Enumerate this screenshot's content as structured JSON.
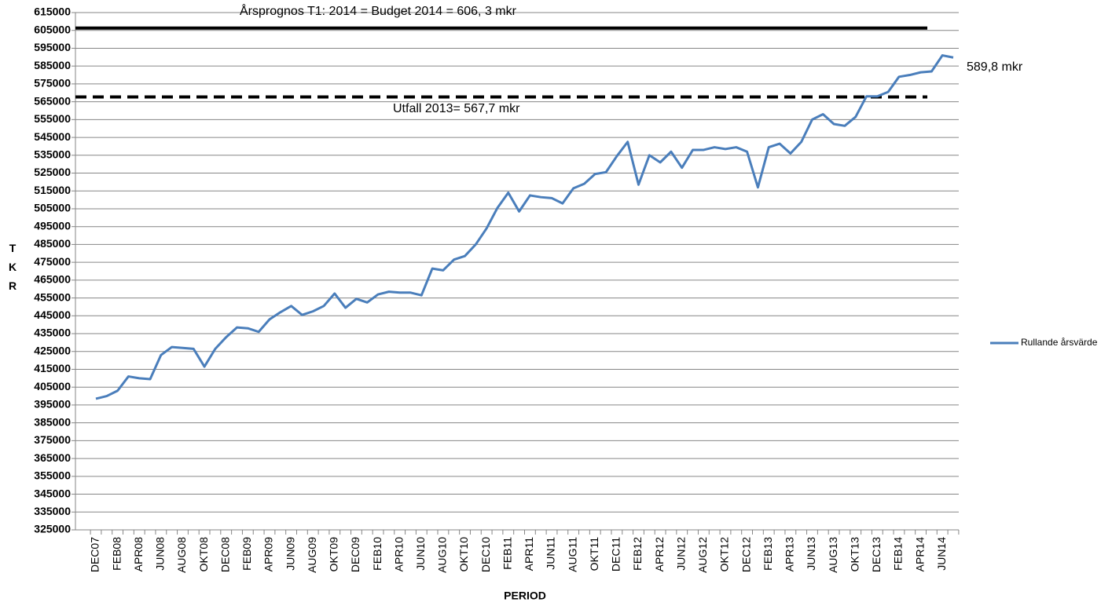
{
  "chart_data": {
    "type": "line",
    "x_label": "PERIOD",
    "y_label": "TKR",
    "categories": [
      "DEC07",
      null,
      "FEB08",
      null,
      "APR08",
      null,
      "JUN08",
      null,
      "AUG08",
      null,
      "OKT08",
      null,
      "DEC08",
      null,
      "FEB09",
      null,
      "APR09",
      null,
      "JUN09",
      null,
      "AUG09",
      null,
      "OKT09",
      null,
      "DEC09",
      null,
      "FEB10",
      null,
      "APR10",
      null,
      "JUN10",
      null,
      "AUG10",
      null,
      "OKT10",
      null,
      "DEC10",
      null,
      "FEB11",
      null,
      "APR11",
      null,
      "JUN11",
      null,
      "AUG11",
      null,
      "OKT11",
      null,
      "DEC11",
      null,
      "FEB12",
      null,
      "APR12",
      null,
      "JUN12",
      null,
      "AUG12",
      null,
      "OKT12",
      null,
      "DEC12",
      null,
      "FEB13",
      null,
      "APR13",
      null,
      "JUN13",
      null,
      "AUG13",
      null,
      "OKT13",
      null,
      "DEC13",
      null,
      "FEB14",
      null,
      "APR14",
      null,
      "JUN14",
      null
    ],
    "series": [
      {
        "name": "Rullande årsvärde",
        "color": "#4a7ebb",
        "values": [
          398500,
          400000,
          403000,
          411000,
          410000,
          409500,
          423000,
          427500,
          427000,
          426500,
          416500,
          426500,
          433000,
          438500,
          438000,
          436000,
          443000,
          447000,
          450500,
          445500,
          447500,
          450500,
          457500,
          449500,
          454500,
          452500,
          457000,
          458500,
          458000,
          458000,
          456500,
          471500,
          470500,
          476500,
          478500,
          485000,
          494000,
          505500,
          514000,
          503500,
          512500,
          511500,
          511000,
          508000,
          516500,
          519000,
          524500,
          525500,
          534500,
          542500,
          518500,
          535000,
          531000,
          537000,
          528000,
          538000,
          538000,
          539500,
          538500,
          539500,
          537000,
          517000,
          539500,
          541500,
          536000,
          542500,
          555000,
          558000,
          552500,
          551500,
          556500,
          568000,
          568000,
          570500,
          579000,
          580000,
          581500,
          582000,
          591000,
          589800
        ]
      }
    ],
    "end_label": "589,8 mkr",
    "reference_lines": [
      {
        "value": 606300,
        "style": "solid",
        "label": "Årsprognos T1: 2014 = Budget 2014 = 606, 3 mkr"
      },
      {
        "value": 567700,
        "style": "dashed",
        "label": "Utfall 2013= 567,7 mkr"
      }
    ],
    "ylim": [
      325000,
      615000
    ],
    "yticks": [
      325000,
      335000,
      345000,
      355000,
      365000,
      375000,
      385000,
      395000,
      405000,
      415000,
      425000,
      435000,
      445000,
      455000,
      465000,
      475000,
      485000,
      495000,
      505000,
      515000,
      525000,
      535000,
      545000,
      555000,
      565000,
      575000,
      585000,
      595000,
      605000,
      615000
    ],
    "grid": true,
    "legend": "right"
  }
}
